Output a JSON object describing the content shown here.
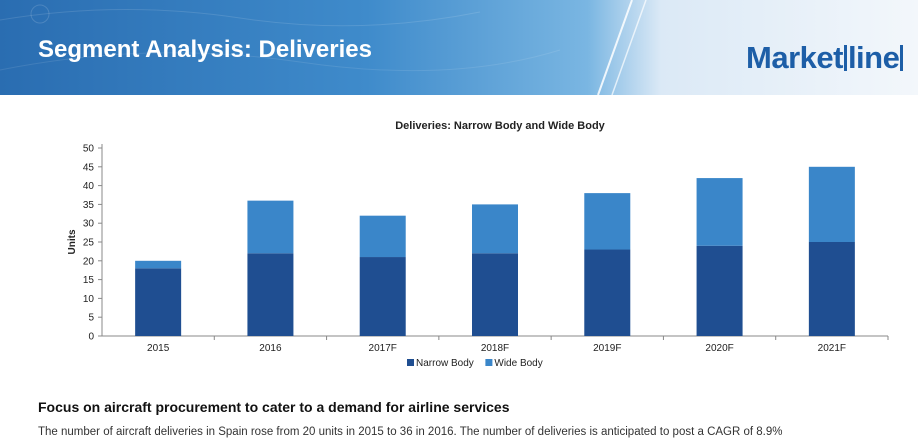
{
  "header": {
    "title": "Segment Analysis: Deliveries",
    "logo_main": "Market",
    "logo_boxed": "line"
  },
  "colors": {
    "narrow": "#1f4e91",
    "wide": "#3a86c9",
    "banner": "#2f74ba",
    "logo": "#1d5ea7"
  },
  "chart_data": {
    "type": "bar",
    "stacked": true,
    "title": "Deliveries: Narrow Body and Wide Body",
    "xlabel": "",
    "ylabel": "Units",
    "ylim": [
      0,
      50
    ],
    "yticks": [
      0,
      5,
      10,
      15,
      20,
      25,
      30,
      35,
      40,
      45,
      50
    ],
    "grid": false,
    "legend_position": "bottom",
    "categories": [
      "2015",
      "2016",
      "2017F",
      "2018F",
      "2019F",
      "2020F",
      "2021F"
    ],
    "series": [
      {
        "name": "Narrow Body",
        "color": "#1f4e91",
        "values": [
          18,
          22,
          21,
          22,
          23,
          24,
          25
        ]
      },
      {
        "name": "Wide Body",
        "color": "#3a86c9",
        "values": [
          2,
          14,
          11,
          13,
          15,
          18,
          20
        ]
      }
    ]
  },
  "body": {
    "heading": "Focus on aircraft procurement to cater to a demand for airline services",
    "paragraph": "The number of aircraft deliveries in Spain rose from 20 units in 2015 to 36 in 2016. The number of deliveries is anticipated to post a CAGR of 8.9%"
  }
}
